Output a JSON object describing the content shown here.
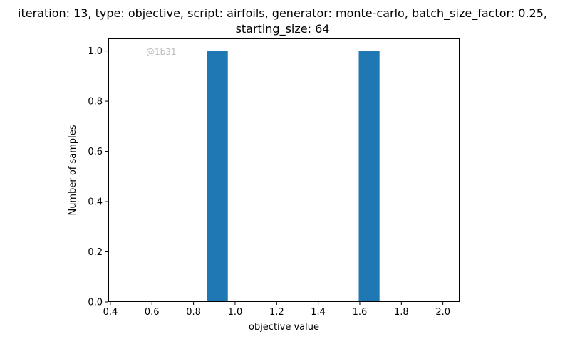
{
  "chart_data": {
    "type": "bar",
    "title_lines": [
      "iteration: 13, type: objective, script: airfoils, generator: monte-carlo, batch_size_factor: 0.25,",
      "starting_size: 64"
    ],
    "xlabel": "objective value",
    "ylabel": "Number of samples",
    "xlim": [
      0.39,
      2.08
    ],
    "ylim": [
      0,
      1.05
    ],
    "x_ticks": [
      "0.4",
      "0.6",
      "0.8",
      "1.0",
      "1.2",
      "1.4",
      "1.6",
      "1.8",
      "2.0"
    ],
    "x_tick_values": [
      0.4,
      0.6,
      0.8,
      1.0,
      1.2,
      1.4,
      1.6,
      1.8,
      2.0
    ],
    "y_ticks": [
      "0.0",
      "0.2",
      "0.4",
      "0.6",
      "0.8",
      "1.0"
    ],
    "y_tick_values": [
      0.0,
      0.2,
      0.4,
      0.6,
      0.8,
      1.0
    ],
    "bins": [
      {
        "x_start": 0.865,
        "x_end": 0.965,
        "count": 1
      },
      {
        "x_start": 1.595,
        "x_end": 1.695,
        "count": 1
      }
    ],
    "bar_color": "#1f77b4",
    "grid": false,
    "watermark": "@1b31",
    "watermark_color": "#bbbbbb"
  }
}
